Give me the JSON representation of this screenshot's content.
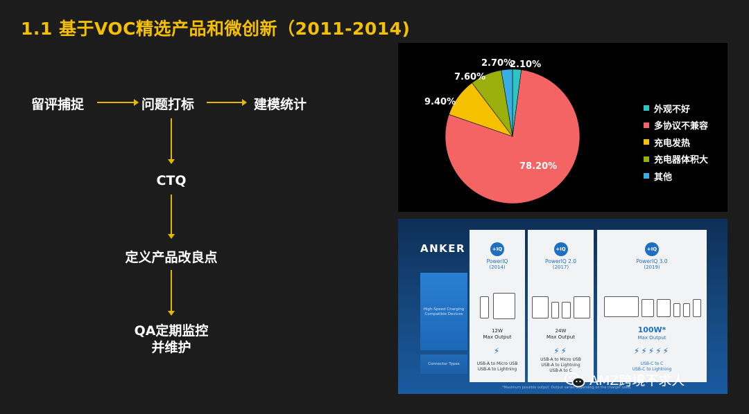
{
  "slide_title": "1.1 基于VOC精选产品和微创新（2011-2014)",
  "flow": {
    "step1": "留评捕捉",
    "step2": "问题打标",
    "step3": "建模统计",
    "step4": "CTQ",
    "step5": "定义产品改良点",
    "step6_line1": "QA定期监控",
    "step6_line2": "并维护"
  },
  "chart_data": {
    "type": "pie",
    "title": "",
    "legend_position": "right",
    "slices": [
      {
        "label": "外观不好",
        "value": 2.1,
        "value_label": "2.10%",
        "color": "#2ec4c4"
      },
      {
        "label": "多协议不兼容",
        "value": 78.2,
        "value_label": "78.20%",
        "color": "#f46464"
      },
      {
        "label": "充电发热",
        "value": 9.4,
        "value_label": "9.40%",
        "color": "#f5c000"
      },
      {
        "label": "充电器体积大",
        "value": 7.6,
        "value_label": "7.60%",
        "color": "#9aaf0c"
      },
      {
        "label": "其他",
        "value": 2.7,
        "value_label": "2.70%",
        "color": "#3aaee0"
      }
    ]
  },
  "anker": {
    "logo": "ANKER",
    "row1_label": "High-Speed Charging Compatible Devices",
    "row2_label": "Connector Types",
    "columns": [
      {
        "badge": "+IQ",
        "name": "PowerIQ",
        "year": "(2014)",
        "watt": "12W",
        "watt_sub": "Max Output",
        "bolts": "⚡",
        "conn1": "USB-A to Micro USB",
        "conn2": "USB-A to Lightning",
        "conn3": ""
      },
      {
        "badge": "+IQ",
        "name": "PowerIQ 2.0",
        "year": "(2017)",
        "watt": "24W",
        "watt_sub": "Max Output",
        "bolts": "⚡⚡",
        "conn1": "USB-A to Micro USB",
        "conn2": "USB-A to Lightning",
        "conn3": "USB-A to C"
      },
      {
        "badge": "+IQ",
        "name": "PowerIQ 3.0",
        "year": "(2019)",
        "watt": "100W*",
        "watt_sub": "Max Output",
        "bolts": "⚡⚡⚡⚡⚡",
        "conn1": "USB-C to C",
        "conn2": "USB-C to Lightning",
        "conn3": ""
      }
    ],
    "footnote": "*Maximum possible output. Output varies depending on the charger used."
  },
  "watermark": "AMZ跨境不求人"
}
